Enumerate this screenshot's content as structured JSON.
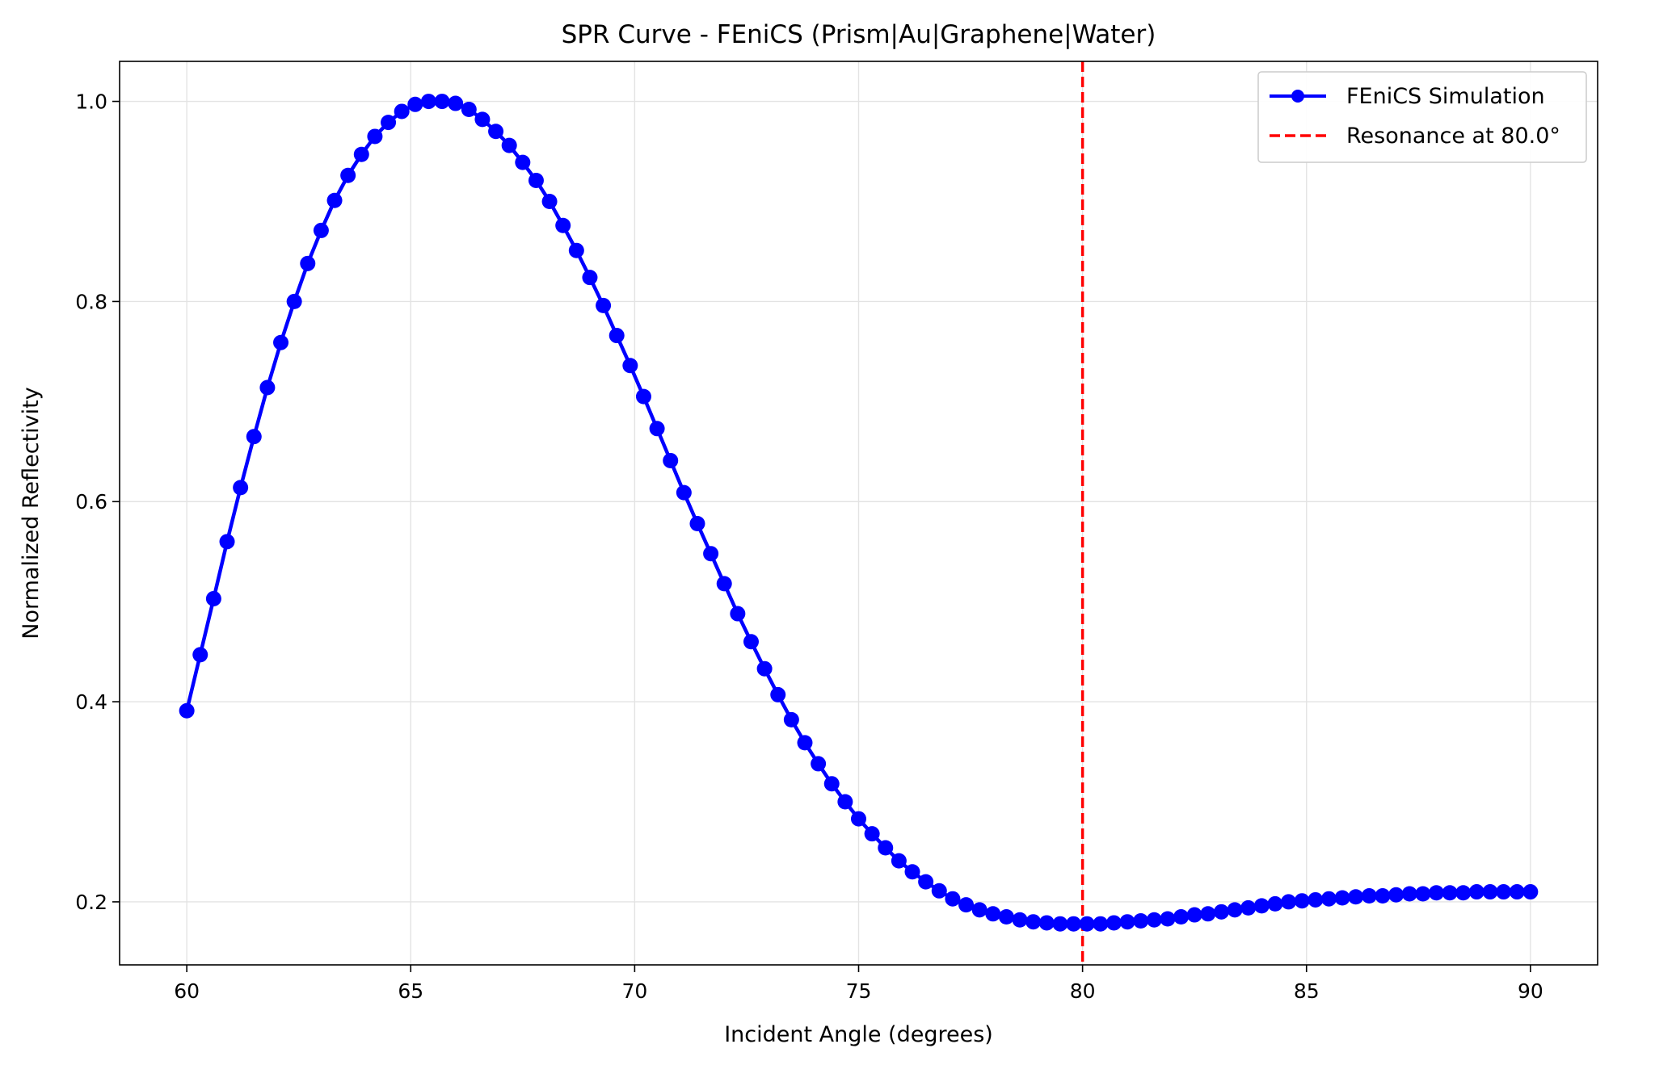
{
  "chart_data": {
    "type": "line",
    "title": "SPR Curve - FEniCS (Prism|Au|Graphene|Water)",
    "xlabel": "Incident Angle (degrees)",
    "ylabel": "Normalized Reflectivity",
    "xlim": [
      58.5,
      91.5
    ],
    "ylim": [
      0.137,
      1.04
    ],
    "xticks": [
      60,
      65,
      70,
      75,
      80,
      85,
      90
    ],
    "xtick_labels": [
      "60",
      "65",
      "70",
      "75",
      "80",
      "85",
      "90"
    ],
    "yticks": [
      0.2,
      0.4,
      0.6,
      0.8,
      1.0
    ],
    "ytick_labels": [
      "0.2",
      "0.4",
      "0.6",
      "0.8",
      "1.0"
    ],
    "grid": true,
    "legend_position": "top-right",
    "series": [
      {
        "name": "FEniCS Simulation",
        "color": "#0000ff",
        "style": "solid line with circle markers",
        "x": [
          60.0,
          60.3,
          60.6,
          60.9,
          61.2,
          61.5,
          61.8,
          62.1,
          62.4,
          62.7,
          63.0,
          63.3,
          63.6,
          63.9,
          64.2,
          64.5,
          64.8,
          65.1,
          65.4,
          65.7,
          66.0,
          66.3,
          66.6,
          66.9,
          67.2,
          67.5,
          67.8,
          68.1,
          68.4,
          68.7,
          69.0,
          69.3,
          69.6,
          69.9,
          70.2,
          70.5,
          70.8,
          71.1,
          71.4,
          71.7,
          72.0,
          72.3,
          72.6,
          72.9,
          73.2,
          73.5,
          73.8,
          74.1,
          74.4,
          74.7,
          75.0,
          75.3,
          75.6,
          75.9,
          76.2,
          76.5,
          76.8,
          77.1,
          77.4,
          77.7,
          78.0,
          78.3,
          78.6,
          78.9,
          79.2,
          79.5,
          79.8,
          80.1,
          80.4,
          80.7,
          81.0,
          81.3,
          81.6,
          81.9,
          82.2,
          82.5,
          82.8,
          83.1,
          83.4,
          83.7,
          84.0,
          84.3,
          84.6,
          84.9,
          85.2,
          85.5,
          85.8,
          86.1,
          86.4,
          86.7,
          87.0,
          87.3,
          87.6,
          87.9,
          88.2,
          88.5,
          88.8,
          89.1,
          89.4,
          89.7,
          90.0
        ],
        "y": [
          0.391,
          0.447,
          0.503,
          0.56,
          0.614,
          0.665,
          0.714,
          0.759,
          0.8,
          0.838,
          0.871,
          0.901,
          0.926,
          0.947,
          0.965,
          0.979,
          0.99,
          0.997,
          1.0,
          1.0,
          0.998,
          0.992,
          0.982,
          0.97,
          0.956,
          0.939,
          0.921,
          0.9,
          0.876,
          0.851,
          0.824,
          0.796,
          0.766,
          0.736,
          0.705,
          0.673,
          0.641,
          0.609,
          0.578,
          0.548,
          0.518,
          0.488,
          0.46,
          0.433,
          0.407,
          0.382,
          0.359,
          0.338,
          0.318,
          0.3,
          0.283,
          0.268,
          0.254,
          0.241,
          0.23,
          0.22,
          0.211,
          0.203,
          0.197,
          0.192,
          0.188,
          0.185,
          0.182,
          0.18,
          0.179,
          0.178,
          0.178,
          0.178,
          0.178,
          0.179,
          0.18,
          0.181,
          0.182,
          0.183,
          0.185,
          0.187,
          0.188,
          0.19,
          0.192,
          0.194,
          0.196,
          0.198,
          0.2,
          0.201,
          0.202,
          0.203,
          0.204,
          0.205,
          0.206,
          0.206,
          0.207,
          0.208,
          0.208,
          0.209,
          0.209,
          0.209,
          0.21,
          0.21,
          0.21,
          0.21,
          0.21
        ]
      },
      {
        "name": "Resonance at 80.0°",
        "color": "#ff0000",
        "style": "dashed vertical line",
        "x": 80.0
      }
    ]
  }
}
